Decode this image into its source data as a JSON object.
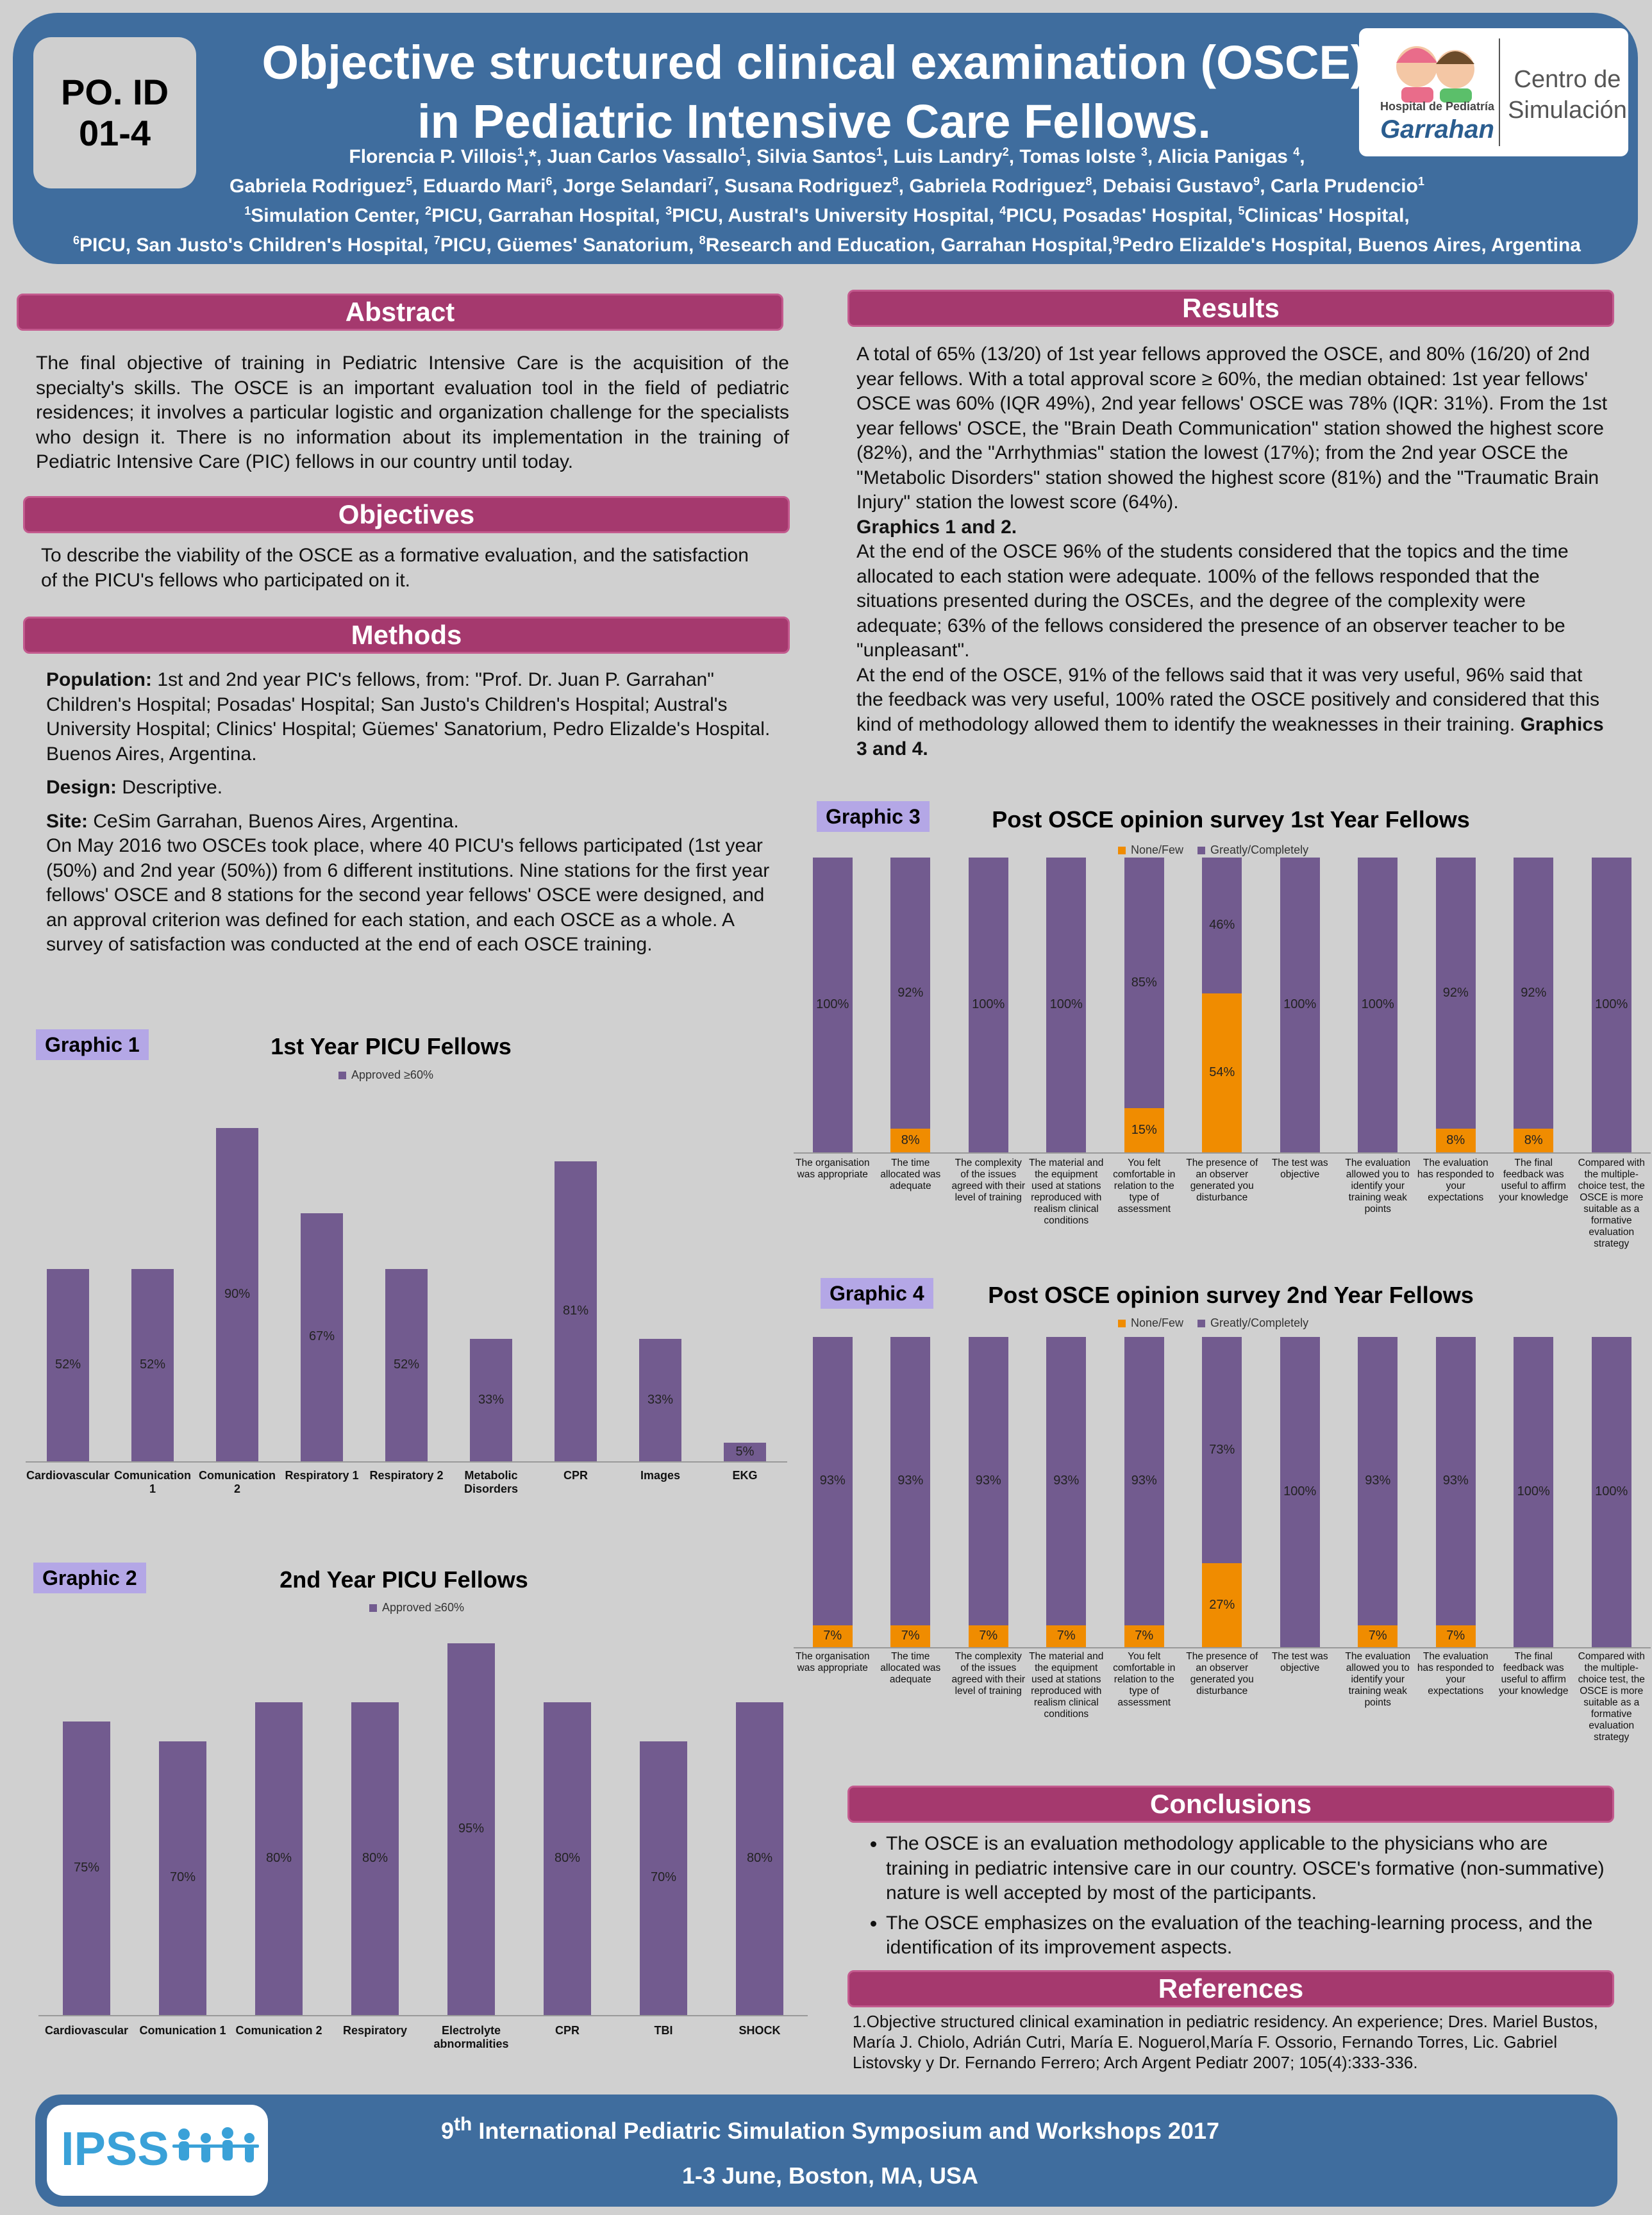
{
  "header": {
    "poid_line1": "PO. ID",
    "poid_line2": "01-4",
    "title_line1": "Objective structured clinical examination (OSCE)",
    "title_line2": "in Pediatric Intensive Care Fellows.",
    "authors_html": "Florencia P. Villois<sup>1</sup>,*, Juan Carlos Vassallo<sup>1</sup>, Silvia Santos<sup>1</sup>, Luis Landry<sup>2</sup>, Tomas Iolste <sup>3</sup>, Alicia Panigas <sup>4</sup>,<br>Gabriela Rodriguez<sup>5</sup>, Eduardo Mari<sup>6</sup>, Jorge Selandari<sup>7</sup>, Susana Rodriguez<sup>8</sup>, Gabriela Rodriguez<sup>8</sup>, Debaisi Gustavo<sup>9</sup>, Carla Prudencio<sup>1</sup><br><sup>1</sup>Simulation Center, <sup>2</sup>PICU, Garrahan Hospital, <sup>3</sup>PICU, Austral's University Hospital, <sup>4</sup>PICU, Posadas' Hospital, <sup>5</sup>Clinicas' Hospital,<br><sup>6</sup>PICU, San Justo's Children's Hospital, <sup>7</sup>PICU, Güemes' Sanatorium, <sup>8</sup>Research and Education, Garrahan Hospital,<sup>9</sup>Pedro Elizalde's Hospital, Buenos Aires, Argentina",
    "logo_hospital_small": "Hospital de Pediatría",
    "logo_hospital": "Garrahan",
    "logo_center_1": "Centro de",
    "logo_center_2": "Simulación"
  },
  "abstract": {
    "heading": "Abstract",
    "text": "The final objective of training in Pediatric Intensive Care is the acquisition of the specialty's skills. The OSCE is an important evaluation tool in the field of pediatric residences; it involves a particular logistic and organization challenge for the specialists who design it. There is no information about its implementation in the training of Pediatric Intensive Care (PIC) fellows in our country until today."
  },
  "objectives": {
    "heading": "Objectives",
    "text": "To describe the viability of the OSCE as a formative evaluation, and the satisfaction of the PICU's fellows who participated on it."
  },
  "methods": {
    "heading": "Methods",
    "population_label": "Population:",
    "population_text": " 1st and 2nd year PIC's fellows, from: \"Prof. Dr. Juan P. Garrahan\" Children's Hospital; Posadas' Hospital; San Justo's Children's Hospital; Austral's University Hospital; Clinics' Hospital; Güemes' Sanatorium, Pedro Elizalde's Hospital. Buenos Aires, Argentina.",
    "design_label": "Design:",
    "design_text": " Descriptive.",
    "site_label": "Site:",
    "site_text": " CeSim Garrahan, Buenos Aires, Argentina.",
    "site_details": "On May 2016 two OSCEs took place, where 40 PICU's fellows participated (1st year (50%) and 2nd year (50%)) from 6 different institutions. Nine stations for the first year fellows' OSCE and 8 stations for the second year fellows' OSCE were designed, and an approval criterion was defined for each station, and each OSCE as a whole. A survey of satisfaction was conducted at the end of each OSCE training."
  },
  "results": {
    "heading": "Results",
    "p1": "A total of 65% (13/20) of 1st year fellows approved the OSCE, and 80% (16/20) of 2nd year fellows. With a total approval score ≥ 60%, the median obtained: 1st year fellows' OSCE was 60% (IQR 49%), 2nd year fellows' OSCE was 78% (IQR: 31%). From the 1st year fellows' OSCE, the \"Brain Death Communication\" station showed the highest score (82%), and the \"Arrhythmias\" station the lowest (17%); from the 2nd year OSCE the \"Metabolic Disorders\" station showed the highest score (81%) and the \"Traumatic Brain Injury\" station the lowest score (64%).",
    "p1_bold": "Graphics 1 and 2.",
    "p2": "At the end of the OSCE 96% of the students considered that the topics and the time allocated to each station were adequate. 100% of the fellows responded that the situations presented during the OSCEs, and the degree of the complexity were adequate; 63% of the fellows considered the presence of an observer teacher to be \"unpleasant\".",
    "p3": "At the end of the OSCE, 91% of the fellows said that it was very useful, 96% said that the feedback was very useful, 100% rated the OSCE positively and considered that this kind of methodology allowed them to identify the weaknesses in their training. ",
    "p3_bold": "Graphics 3 and 4."
  },
  "conclusions": {
    "heading": "Conclusions",
    "items": [
      "The OSCE is an evaluation methodology applicable to the physicians who are training in pediatric intensive care in our country. OSCE's formative (non-summative) nature is well accepted by most of the participants.",
      "The OSCE emphasizes on the evaluation of the teaching-learning process, and the identification of its improvement aspects."
    ]
  },
  "references": {
    "heading": "References",
    "text": "1.Objective structured clinical examination in pediatric residency. An experience; Dres. Mariel Bustos, María J. Chiolo, Adrián Cutri, María E. Noguerol,María F. Ossorio, Fernando Torres, Lic. Gabriel Listovsky y Dr. Fernando Ferrero;  Arch Argent Pediatr 2007; 105(4):333-336."
  },
  "footer": {
    "logo": "IPSS",
    "line1_pre": "9",
    "line1_sup": "th",
    "line1_post": " International Pediatric Simulation Symposium and Workshops 2017",
    "line2": "1-3 June, Boston, MA, USA"
  },
  "colors": {
    "purple_bar": "#725b8f",
    "orange_bar": "#f08c00",
    "section_header": "#a5396e",
    "header_blue": "#3f6d9e"
  },
  "chart_data": [
    {
      "id": "g1",
      "tag": "Graphic 1",
      "type": "bar",
      "title": "1st Year PICU Fellows",
      "legend": [
        "Approved  ≥60%"
      ],
      "categories": [
        "Cardiovascular",
        "Comunication 1",
        "Comunication 2",
        "Respiratory 1",
        "Respiratory 2",
        "Metabolic Disorders",
        "CPR",
        "Images",
        "EKG"
      ],
      "values": [
        52,
        52,
        90,
        67,
        52,
        33,
        81,
        33,
        5
      ],
      "labels": [
        "52%",
        "52%",
        "90%",
        "67%",
        "52%",
        "33%",
        "81%",
        "33%",
        "5%"
      ],
      "ylim": [
        0,
        90
      ]
    },
    {
      "id": "g2",
      "tag": "Graphic 2",
      "type": "bar",
      "title": "2nd Year PICU Fellows",
      "legend": [
        "Approved  ≥60%"
      ],
      "categories": [
        "Cardiovascular",
        "Comunication 1",
        "Comunication 2",
        "Respiratory",
        "Electrolyte abnormalities",
        "CPR",
        "TBI",
        "SHOCK"
      ],
      "values": [
        75,
        70,
        80,
        80,
        95,
        80,
        70,
        80
      ],
      "labels": [
        "75%",
        "70%",
        "80%",
        "80%",
        "95%",
        "80%",
        "70%",
        "80%"
      ],
      "ylim": [
        0,
        95
      ]
    },
    {
      "id": "g3",
      "tag": "Graphic 3",
      "type": "bar",
      "stacked": true,
      "title": "Post OSCE opinion survey 1st Year Fellows",
      "legend": [
        "None/Few",
        "Greatly/Completely"
      ],
      "categories": [
        "The organisation was appropriate",
        "The time allocated was adequate",
        "The complexity of the issues agreed with their level of training",
        "The material and the equipment used at stations reproduced with realism clinical conditions",
        "You felt comfortable in relation to the type of assessment",
        "The presence of an observer generated you disturbance",
        "The test was objective",
        "The evaluation allowed you to identify your training weak points",
        "The evaluation has responded to your expectations",
        "The final feedback was useful to affirm your knowledge",
        "Compared with the multiple-choice test, the OSCE is more suitable as a formative evaluation strategy"
      ],
      "series": [
        {
          "name": "None/Few",
          "values": [
            0,
            8,
            0,
            0,
            15,
            54,
            0,
            0,
            8,
            8,
            0
          ],
          "labels": [
            "",
            "8%",
            "",
            "",
            "15%",
            "54%",
            "",
            "",
            "8%",
            "8%",
            ""
          ]
        },
        {
          "name": "Greatly/Completely",
          "values": [
            100,
            92,
            100,
            100,
            85,
            46,
            100,
            100,
            92,
            92,
            100
          ],
          "labels": [
            "100%",
            "92%",
            "100%",
            "100%",
            "85%",
            "46%",
            "100%",
            "100%",
            "92%",
            "92%",
            "100%"
          ]
        }
      ]
    },
    {
      "id": "g4",
      "tag": "Graphic 4",
      "type": "bar",
      "stacked": true,
      "title": "Post OSCE opinion survey 2nd Year Fellows",
      "legend": [
        "None/Few",
        "Greatly/Completely"
      ],
      "categories": [
        "The organisation was appropriate",
        "The time allocated was adequate",
        "The complexity of the issues agreed with their level of training",
        "The material and the equipment used at stations reproduced with realism clinical conditions",
        "You felt comfortable in relation to the type of assessment",
        "The presence of an observer generated you disturbance",
        "The test was objective",
        "The evaluation allowed you to identify your training weak points",
        "The evaluation has responded to your expectations",
        "The final feedback was useful to affirm your knowledge",
        "Compared with the multiple-choice test, the OSCE is more suitable as a formative evaluation strategy"
      ],
      "series": [
        {
          "name": "None/Few",
          "values": [
            7,
            7,
            7,
            7,
            7,
            27,
            0,
            7,
            7,
            0,
            0
          ],
          "labels": [
            "7%",
            "7%",
            "7%",
            "7%",
            "7%",
            "27%",
            "",
            "7%",
            "7%",
            "",
            ""
          ]
        },
        {
          "name": "Greatly/Completely",
          "values": [
            93,
            93,
            93,
            93,
            93,
            73,
            100,
            93,
            93,
            100,
            100
          ],
          "labels": [
            "93%",
            "93%",
            "93%",
            "93%",
            "93%",
            "73%",
            "100%",
            "93%",
            "93%",
            "100%",
            "100%"
          ]
        }
      ]
    }
  ]
}
